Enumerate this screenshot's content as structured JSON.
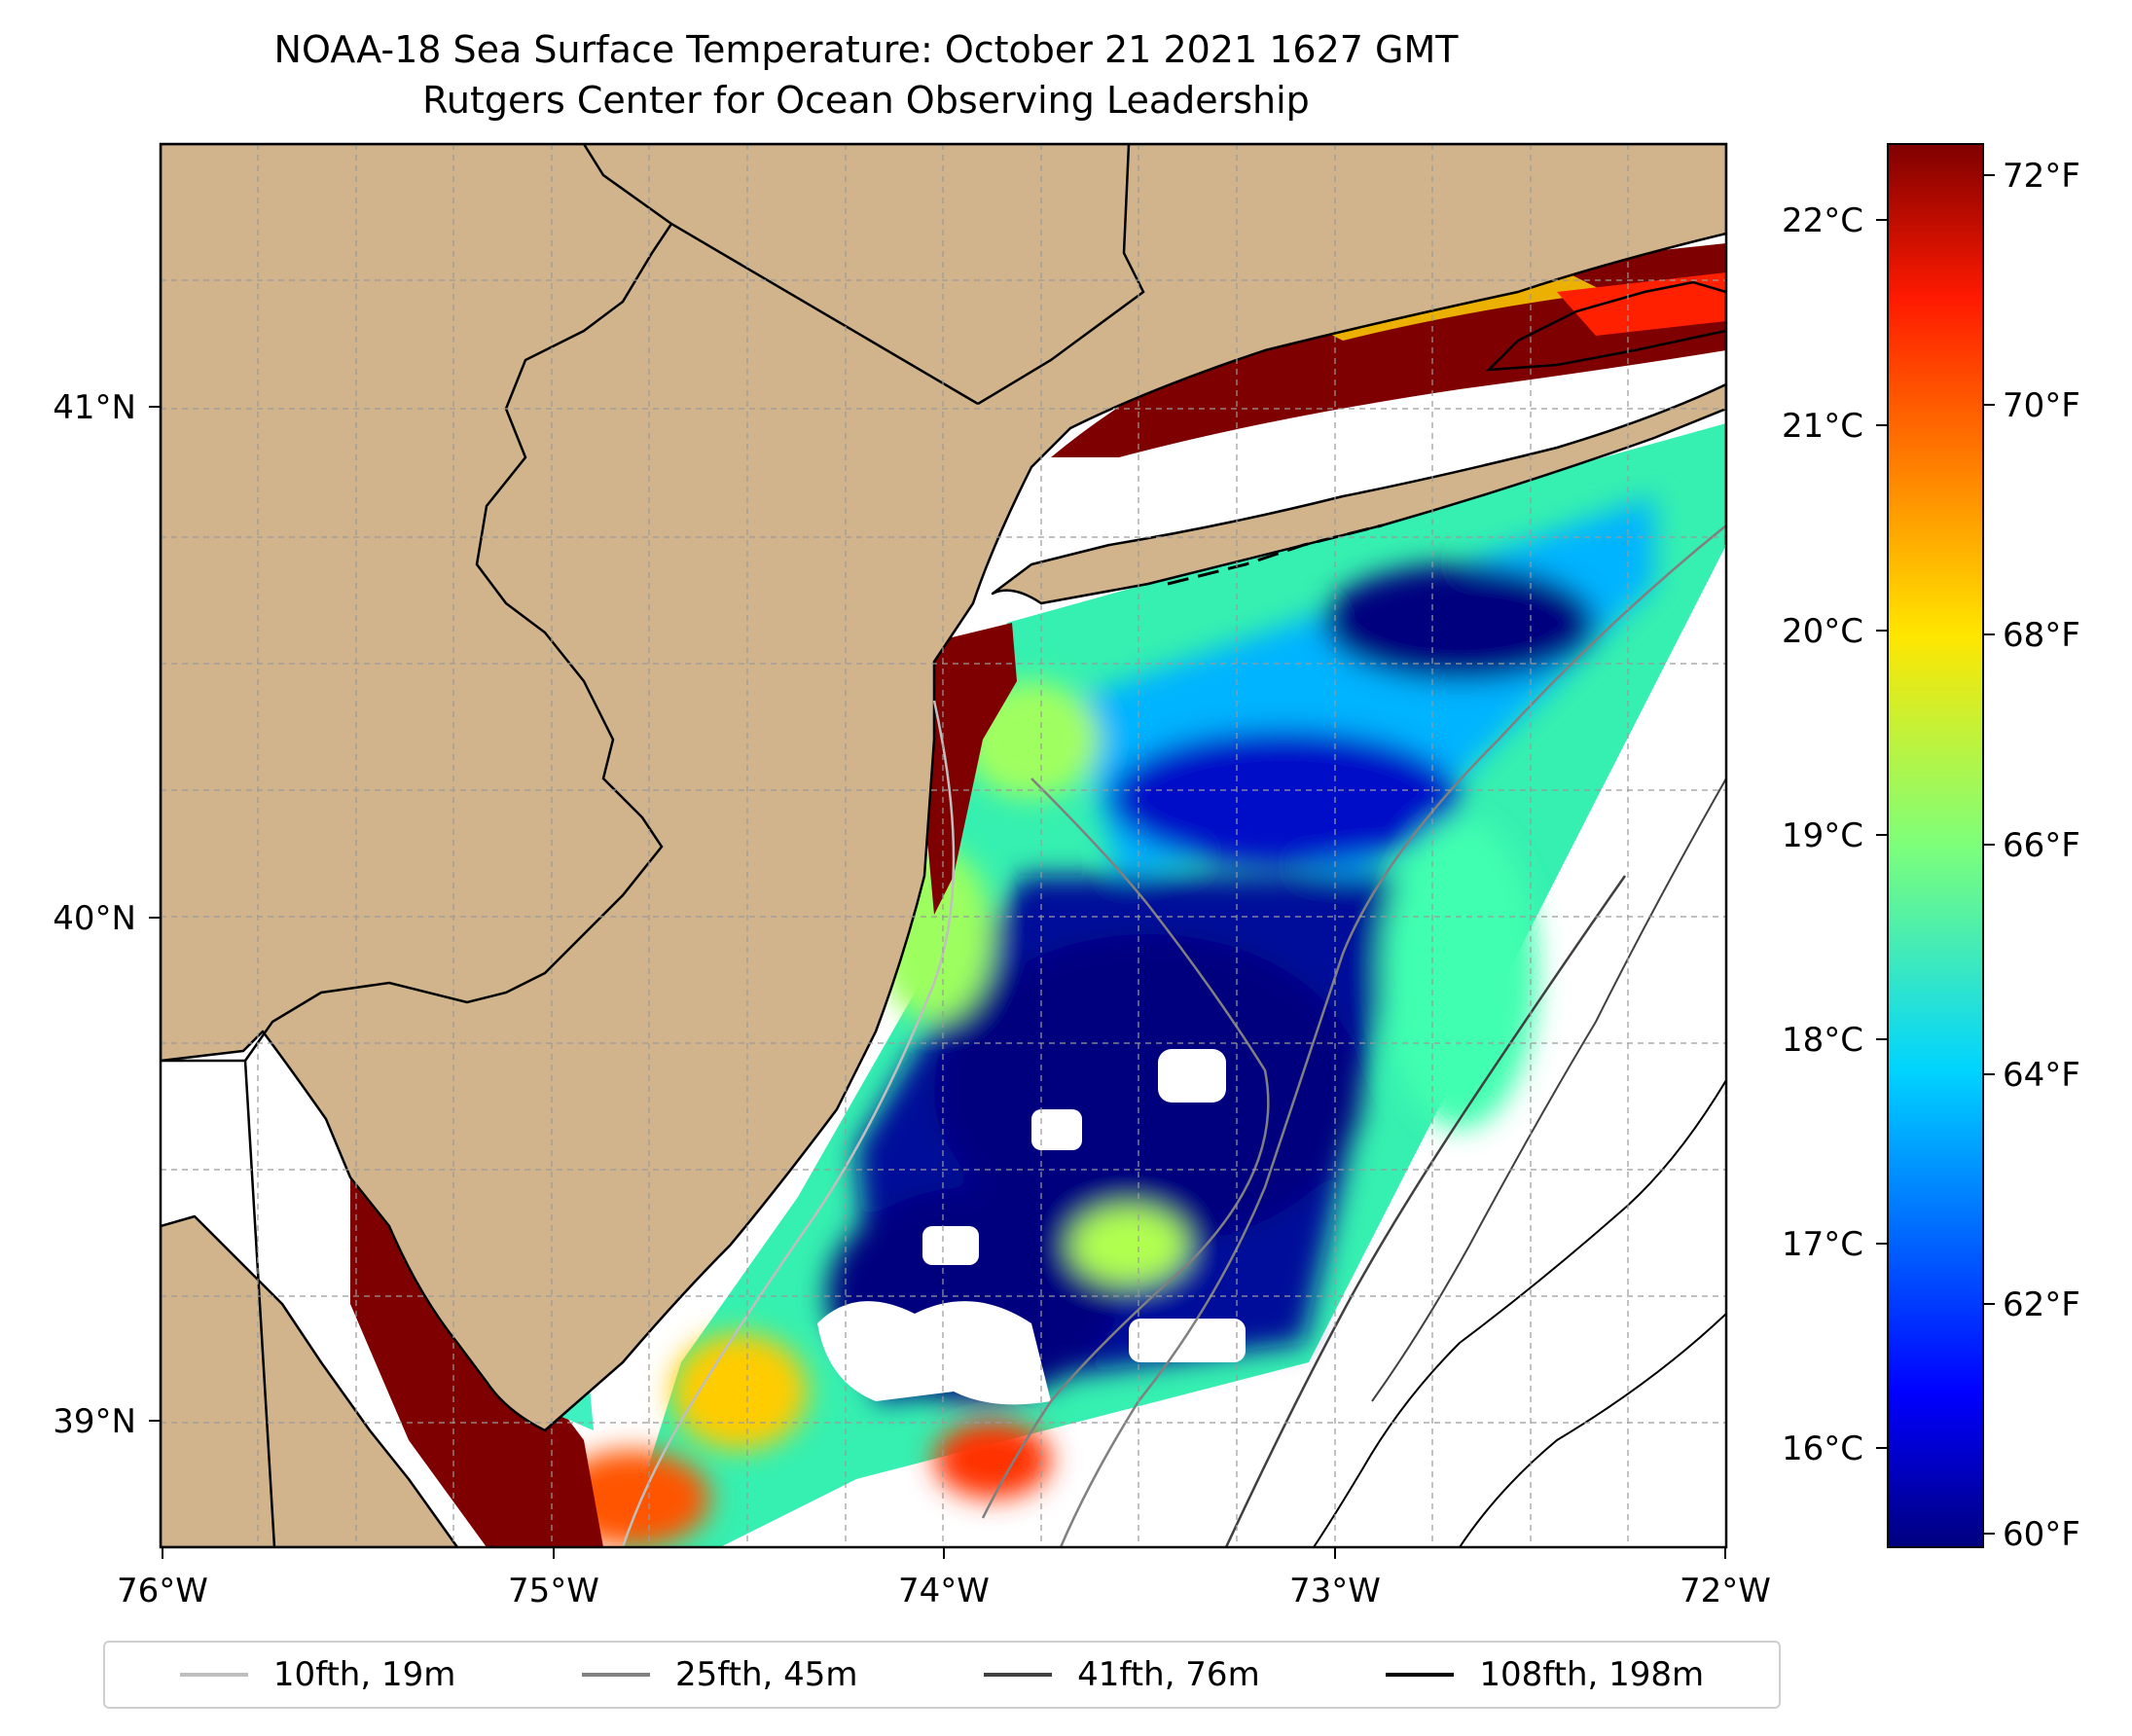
{
  "title_line1": "NOAA-18 Sea Surface Temperature: October 21 2021 1627 GMT",
  "title_line2": "Rutgers Center for Ocean Observing Leadership",
  "map": {
    "lon_ticks": [
      "76°W",
      "75°W",
      "74°W",
      "73°W",
      "72°W"
    ],
    "lat_ticks": [
      "41°N",
      "40°N",
      "39°N"
    ],
    "land_color": "#d2b48c",
    "coast_color": "#000000"
  },
  "colorbar": {
    "celsius_ticks": [
      "22°C",
      "21°C",
      "20°C",
      "19°C",
      "18°C",
      "17°C",
      "16°C"
    ],
    "fahrenheit_ticks": [
      "72°F",
      "70°F",
      "68°F",
      "66°F",
      "64°F",
      "62°F",
      "60°F"
    ],
    "colormap": "jet",
    "range_f": [
      59.8,
      72.3
    ]
  },
  "legend": [
    {
      "label": "10fth, 19m",
      "color": "#bfbfbf"
    },
    {
      "label": "25fth, 45m",
      "color": "#808080"
    },
    {
      "label": "41fth, 76m",
      "color": "#404040"
    },
    {
      "label": "108fth, 198m",
      "color": "#000000"
    }
  ]
}
